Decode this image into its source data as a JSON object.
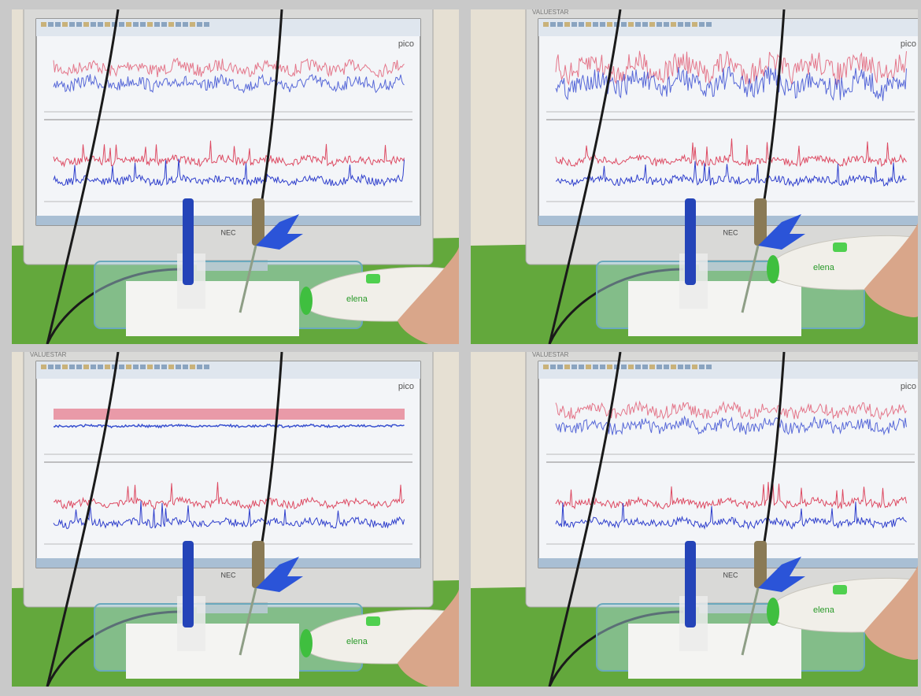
{
  "panels": [
    {
      "screen_logo": "pico",
      "monitor_logo": "NEC",
      "device_label": "elena"
    },
    {
      "brand": "VALUESTAR",
      "screen_logo": "pico",
      "monitor_logo": "NEC",
      "device_label": "elena"
    },
    {
      "brand": "VALUESTAR",
      "screen_logo": "pico",
      "monitor_logo": "NEC",
      "device_label": "elena"
    },
    {
      "brand": "VALUESTAR",
      "screen_logo": "pico",
      "monitor_logo": "NEC",
      "device_label": "elena"
    }
  ]
}
